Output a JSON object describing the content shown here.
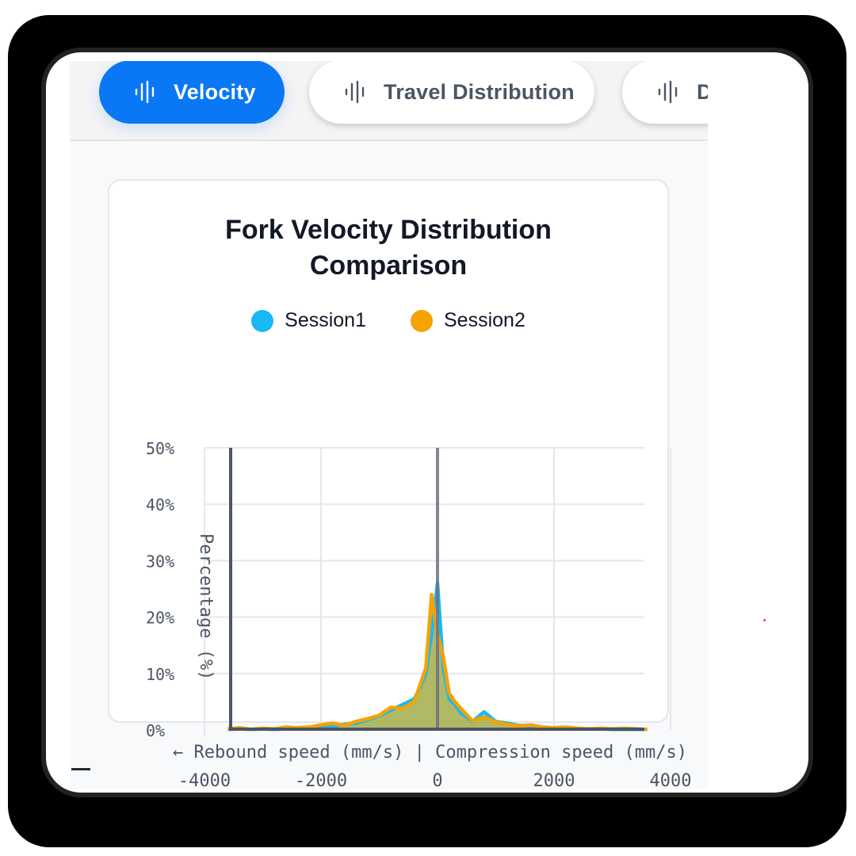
{
  "tabs": [
    {
      "label": "Velocity",
      "icon": "waveform-icon",
      "active": true
    },
    {
      "label": "Travel Distribution",
      "icon": "waveform-icon",
      "active": false
    },
    {
      "label": "D",
      "icon": "waveform-icon",
      "active": false
    }
  ],
  "colors": {
    "accent": "#0a78f5",
    "session1": "#1ab8f5",
    "session2": "#f5a300",
    "fill_overlap": "#b5b34a",
    "axis": "#4b5563"
  },
  "card": {
    "title_line1": "Fork Velocity Distribution",
    "title_line2": "Comparison",
    "legend": [
      {
        "label": "Session1",
        "color": "#1ab8f5"
      },
      {
        "label": "Session2",
        "color": "#f5a300"
      }
    ]
  },
  "chart_data": {
    "type": "area",
    "title": "Fork Velocity Distribution Comparison",
    "xlabel": "← Rebound speed (mm/s) | Compression speed (mm/s)",
    "ylabel": "Percentage (%)",
    "xlim": [
      -4000,
      4000
    ],
    "ylim": [
      0,
      50
    ],
    "x_ticks": [
      "-4000",
      "-2000",
      "0",
      "2000",
      "4000"
    ],
    "y_ticks": [
      "0%",
      "10%",
      "20%",
      "30%",
      "40%",
      "50%"
    ],
    "grid": true,
    "legend_position": "top",
    "x": [
      -3600,
      -3400,
      -3200,
      -3000,
      -2800,
      -2600,
      -2400,
      -2200,
      -2000,
      -1800,
      -1600,
      -1400,
      -1200,
      -1000,
      -800,
      -600,
      -400,
      -300,
      -200,
      -100,
      0,
      100,
      200,
      300,
      400,
      600,
      800,
      1000,
      1200,
      1400,
      1600,
      1800,
      2000,
      2200,
      2400,
      2600,
      2800,
      3000,
      3200,
      3400,
      3600
    ],
    "series": [
      {
        "name": "Session1",
        "values": [
          0.1,
          0.2,
          0.1,
          0.2,
          0.1,
          0.2,
          0.3,
          0.3,
          0.5,
          0.6,
          1.0,
          1.2,
          1.8,
          2.5,
          3.5,
          4.5,
          5.5,
          7.5,
          10.0,
          17.0,
          26.0,
          11.0,
          5.5,
          4.5,
          3.0,
          1.5,
          3.2,
          1.5,
          1.2,
          0.8,
          0.6,
          0.4,
          0.3,
          0.3,
          0.2,
          0.2,
          0.2,
          0.1,
          0.1,
          0.1,
          0.1
        ]
      },
      {
        "name": "Session2",
        "values": [
          0.2,
          0.4,
          0.1,
          0.3,
          0.2,
          0.5,
          0.4,
          0.5,
          0.9,
          1.2,
          0.8,
          1.5,
          2.0,
          2.6,
          4.0,
          3.8,
          5.0,
          8.0,
          11.0,
          24.0,
          17.0,
          13.0,
          6.5,
          5.0,
          3.8,
          1.6,
          2.3,
          1.4,
          1.0,
          0.7,
          0.9,
          0.5,
          0.4,
          0.5,
          0.3,
          0.2,
          0.3,
          0.2,
          0.3,
          0.2,
          0.1
        ]
      }
    ]
  }
}
